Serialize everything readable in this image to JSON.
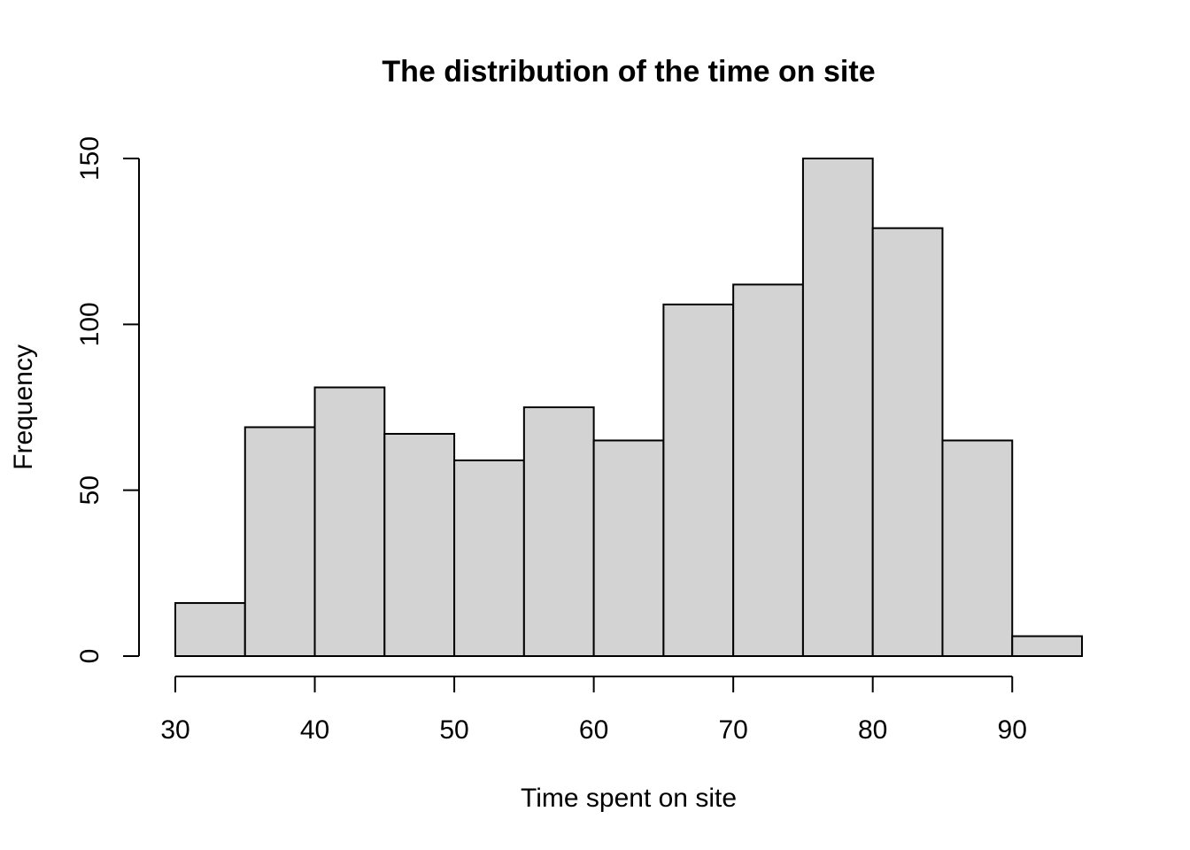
{
  "chart_data": {
    "type": "bar",
    "title": "The distribution of the time on site",
    "xlabel": "Time spent on site",
    "ylabel": "Frequency",
    "bins": [
      {
        "start": 30,
        "end": 35,
        "count": 16
      },
      {
        "start": 35,
        "end": 40,
        "count": 69
      },
      {
        "start": 40,
        "end": 45,
        "count": 81
      },
      {
        "start": 45,
        "end": 50,
        "count": 67
      },
      {
        "start": 50,
        "end": 55,
        "count": 59
      },
      {
        "start": 55,
        "end": 60,
        "count": 75
      },
      {
        "start": 60,
        "end": 65,
        "count": 65
      },
      {
        "start": 65,
        "end": 70,
        "count": 106
      },
      {
        "start": 70,
        "end": 75,
        "count": 112
      },
      {
        "start": 75,
        "end": 80,
        "count": 150
      },
      {
        "start": 80,
        "end": 85,
        "count": 129
      },
      {
        "start": 85,
        "end": 90,
        "count": 65
      },
      {
        "start": 90,
        "end": 95,
        "count": 6
      }
    ],
    "x_ticks": [
      30,
      40,
      50,
      60,
      70,
      80,
      90
    ],
    "y_ticks": [
      0,
      50,
      100,
      150
    ],
    "xlim": [
      30,
      95
    ],
    "ylim": [
      0,
      150
    ],
    "grid": false,
    "legend": "none"
  }
}
